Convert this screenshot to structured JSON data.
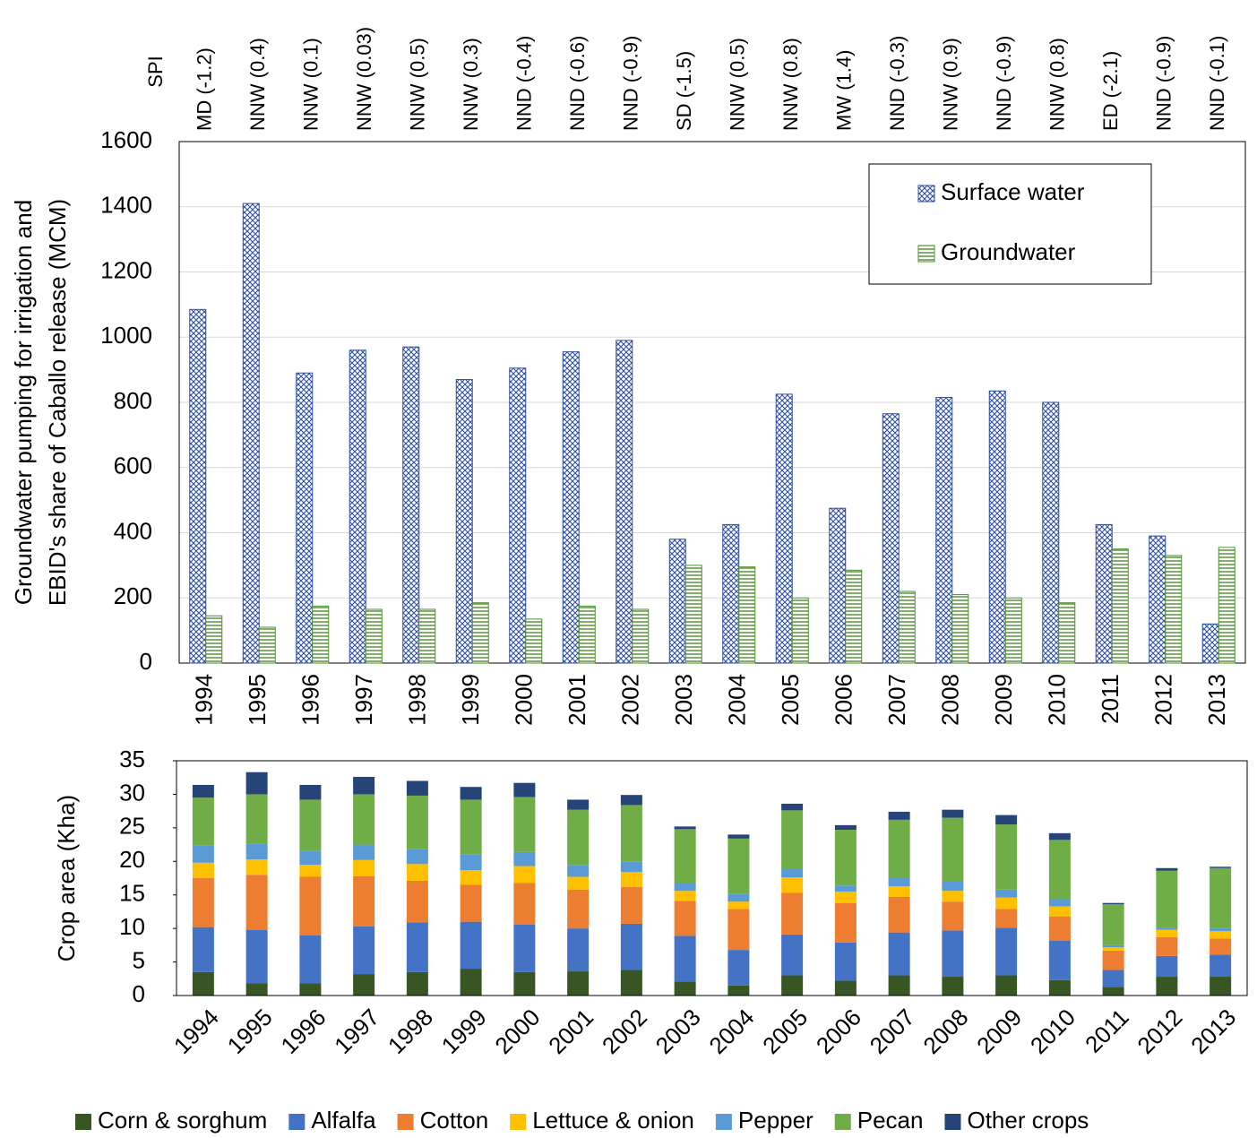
{
  "chart_data": [
    {
      "type": "bar",
      "spi_title": "SPI",
      "spi_labels": [
        "MD (-1.2)",
        "NNW (0.4)",
        "NNW (0.1)",
        "NNW (0.03)",
        "NNW (0.5)",
        "NNW (0.3)",
        "NND (-0.4)",
        "NND (-0.6)",
        "NND (-0.9)",
        "SD (-1.5)",
        "NNW (0.5)",
        "NNW (0.8)",
        "MW (1.4)",
        "NND (-0.3)",
        "NNW (0.9)",
        "NND (-0.9)",
        "NNW (0.8)",
        "ED (-2.1)",
        "NND (-0.9)",
        "NND (-0.1)"
      ],
      "categories": [
        "1994",
        "1995",
        "1996",
        "1997",
        "1998",
        "1999",
        "2000",
        "2001",
        "2002",
        "2003",
        "2004",
        "2005",
        "2006",
        "2007",
        "2008",
        "2009",
        "2010",
        "2011",
        "2012",
        "2013"
      ],
      "ylabel": [
        "Groundwater pumping for irrigation and",
        "EBID's share of Caballo release (MCM)"
      ],
      "series": [
        {
          "name": "Surface water",
          "color": "#2f4f9f",
          "pattern": "crosshatch",
          "values": [
            1085,
            1410,
            890,
            960,
            970,
            870,
            905,
            955,
            990,
            380,
            425,
            825,
            475,
            765,
            815,
            835,
            800,
            425,
            390,
            120
          ]
        },
        {
          "name": "Groundwater",
          "color": "#4f8f2f",
          "pattern": "horizontal",
          "values": [
            145,
            110,
            175,
            165,
            165,
            185,
            135,
            175,
            165,
            300,
            295,
            200,
            285,
            220,
            210,
            200,
            185,
            350,
            330,
            355
          ]
        }
      ],
      "ylim": [
        0,
        1600
      ],
      "yticks": [
        0,
        200,
        400,
        600,
        800,
        1000,
        1200,
        1400,
        1600
      ],
      "grid": true,
      "legend": "top-right"
    },
    {
      "type": "stacked_bar",
      "categories": [
        "1994",
        "1995",
        "1996",
        "1997",
        "1998",
        "1999",
        "2000",
        "2001",
        "2002",
        "2003",
        "2004",
        "2005",
        "2006",
        "2007",
        "2008",
        "2009",
        "2010",
        "2011",
        "2012",
        "2013"
      ],
      "ylabel": "Crop area (Kha)",
      "series": [
        {
          "name": "Corn & sorghum",
          "color": "#375623",
          "values": [
            3.5,
            1.8,
            1.8,
            3.2,
            3.5,
            4.0,
            3.5,
            3.6,
            3.8,
            2.1,
            1.5,
            3.0,
            2.2,
            3.0,
            2.8,
            3.0,
            2.3,
            1.3,
            2.8,
            2.8
          ]
        },
        {
          "name": "Alfalfa",
          "color": "#4472c4",
          "values": [
            6.7,
            8.0,
            7.2,
            7.1,
            7.4,
            7.0,
            7.1,
            6.4,
            6.9,
            6.8,
            5.3,
            6.1,
            5.7,
            6.4,
            6.9,
            7.1,
            5.9,
            2.5,
            3.1,
            3.3
          ]
        },
        {
          "name": "Cotton",
          "color": "#ed7d31",
          "values": [
            7.3,
            8.2,
            8.7,
            7.5,
            6.2,
            5.5,
            6.2,
            5.8,
            5.5,
            5.2,
            6.1,
            6.2,
            5.9,
            5.3,
            4.3,
            2.8,
            3.6,
            2.9,
            2.8,
            2.4
          ]
        },
        {
          "name": "Lettuce & onion",
          "color": "#ffc000",
          "values": [
            2.3,
            2.3,
            1.8,
            2.4,
            2.5,
            2.2,
            2.5,
            1.9,
            2.2,
            1.5,
            1.1,
            2.3,
            1.7,
            1.6,
            1.6,
            1.7,
            1.5,
            0.5,
            1.1,
            1.1
          ]
        },
        {
          "name": "Pepper",
          "color": "#5b9bd5",
          "values": [
            2.6,
            2.3,
            2.1,
            2.3,
            2.2,
            2.3,
            2.1,
            1.7,
            1.6,
            1.1,
            1.2,
            1.3,
            0.9,
            1.2,
            1.5,
            1.2,
            1.0,
            0.3,
            0.3,
            0.5
          ]
        },
        {
          "name": "Pecan",
          "color": "#70ad47",
          "values": [
            7.1,
            7.4,
            7.6,
            7.5,
            8.0,
            8.2,
            8.2,
            8.3,
            8.4,
            8.1,
            8.2,
            8.7,
            8.3,
            8.7,
            9.4,
            9.7,
            8.9,
            6.1,
            8.5,
            8.9
          ]
        },
        {
          "name": "Other crops",
          "color": "#264478",
          "values": [
            1.9,
            3.3,
            2.2,
            2.6,
            2.2,
            1.9,
            2.1,
            1.5,
            1.5,
            0.4,
            0.6,
            1.0,
            0.7,
            1.2,
            1.2,
            1.4,
            1.0,
            0.2,
            0.4,
            0.2
          ]
        }
      ],
      "ylim": [
        0,
        35
      ],
      "yticks": [
        0,
        5,
        10,
        15,
        20,
        25,
        30,
        35
      ],
      "grid": false,
      "legend": "bottom"
    }
  ]
}
